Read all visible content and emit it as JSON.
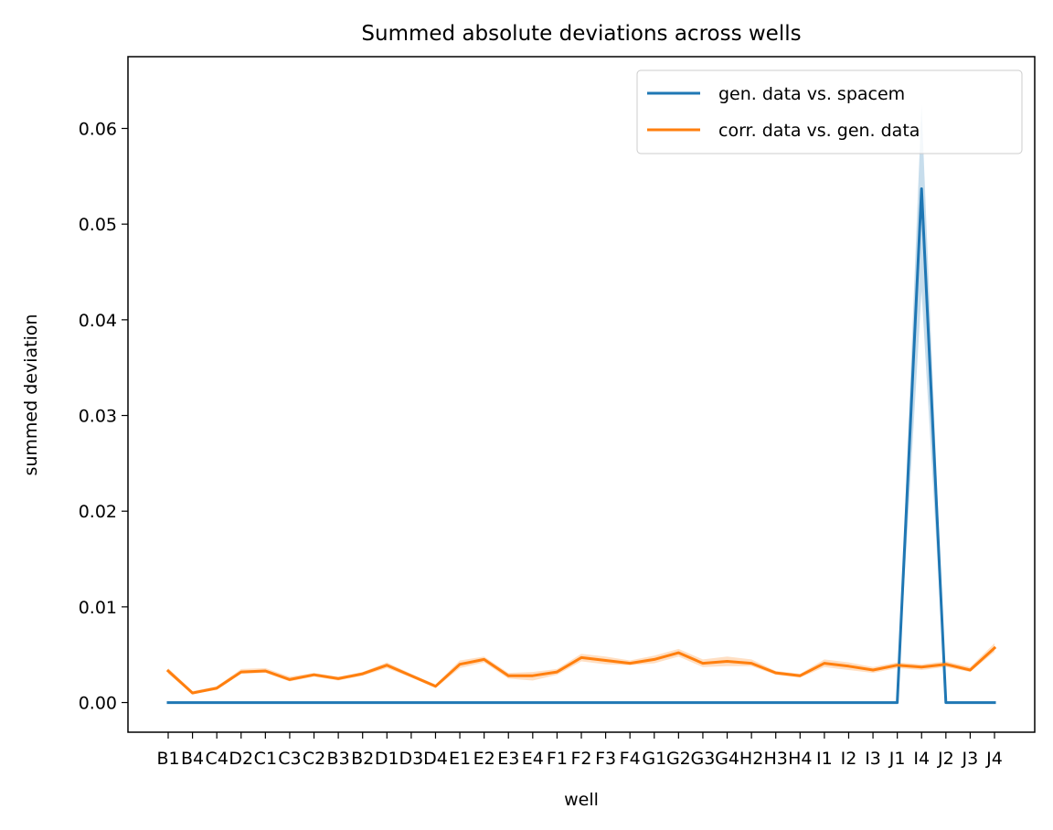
{
  "chart_data": {
    "type": "line",
    "title": "Summed absolute deviations across wells",
    "xlabel": "well",
    "ylabel": "summed deviation",
    "categories": [
      "B1",
      "B4",
      "C4",
      "D2",
      "C1",
      "C3",
      "C2",
      "B3",
      "B2",
      "D1",
      "D3",
      "D4",
      "E1",
      "E2",
      "E3",
      "E4",
      "F1",
      "F2",
      "F3",
      "F4",
      "G1",
      "G2",
      "G3",
      "G4",
      "H2",
      "H3",
      "H4",
      "I1",
      "I2",
      "I3",
      "J1",
      "I4",
      "J2",
      "J3",
      "J4"
    ],
    "ylim": [
      -0.0031,
      0.0675
    ],
    "yticks": [
      0.0,
      0.01,
      0.02,
      0.03,
      0.04,
      0.05,
      0.06
    ],
    "ytick_labels": [
      "0.00",
      "0.01",
      "0.02",
      "0.03",
      "0.04",
      "0.05",
      "0.06"
    ],
    "grid": false,
    "legend_position": "top-right",
    "series": [
      {
        "name": "gen. data vs. spacem",
        "color": "#1f77b4",
        "values": [
          0,
          0,
          0,
          0,
          0,
          0,
          0,
          0,
          0,
          0,
          0,
          0,
          0,
          0,
          0,
          0,
          0,
          0,
          0,
          0,
          0,
          0,
          0,
          0,
          0,
          0,
          0,
          0,
          0,
          0,
          0,
          0.0537,
          0,
          0,
          0
        ],
        "band_low": [
          0,
          0,
          0,
          0,
          0,
          0,
          0,
          0,
          0,
          0,
          0,
          0,
          0,
          0,
          0,
          0,
          0,
          0,
          0,
          0,
          0,
          0,
          0,
          0,
          0,
          0,
          0,
          0,
          0,
          0,
          0,
          0.043,
          0,
          0,
          0
        ],
        "band_high": [
          0,
          0,
          0,
          0,
          0,
          0,
          0,
          0,
          0,
          0,
          0,
          0,
          0,
          0,
          0,
          0,
          0,
          0,
          0,
          0,
          0,
          0,
          0,
          0,
          0,
          0,
          0,
          0,
          0,
          0,
          0,
          0.0625,
          0,
          0,
          0
        ]
      },
      {
        "name": "corr. data vs. gen. data",
        "color": "#ff7f0e",
        "values": [
          0.0033,
          0.001,
          0.0015,
          0.0032,
          0.0033,
          0.0024,
          0.0029,
          0.0025,
          0.003,
          0.0039,
          0.0028,
          0.0017,
          0.004,
          0.0045,
          0.0028,
          0.0028,
          0.0032,
          0.0047,
          0.0044,
          0.0041,
          0.0045,
          0.0052,
          0.0041,
          0.0043,
          0.0041,
          0.0031,
          0.0028,
          0.0041,
          0.0038,
          0.0034,
          0.0039,
          0.0037,
          0.004,
          0.0034,
          0.0057
        ],
        "band_low": [
          0.003,
          0.0009,
          0.0013,
          0.003,
          0.0031,
          0.0022,
          0.0027,
          0.0023,
          0.0028,
          0.0036,
          0.0026,
          0.0015,
          0.0036,
          0.0042,
          0.0025,
          0.0023,
          0.0029,
          0.0043,
          0.004,
          0.0039,
          0.0041,
          0.0048,
          0.0037,
          0.0038,
          0.0038,
          0.0029,
          0.0026,
          0.0037,
          0.0034,
          0.0031,
          0.0036,
          0.0034,
          0.0037,
          0.0032,
          0.0053
        ],
        "band_high": [
          0.0036,
          0.0012,
          0.0017,
          0.0035,
          0.0036,
          0.0027,
          0.0031,
          0.0027,
          0.0032,
          0.0042,
          0.003,
          0.0019,
          0.0044,
          0.0048,
          0.0031,
          0.0032,
          0.0035,
          0.0051,
          0.0048,
          0.0044,
          0.0049,
          0.0056,
          0.0045,
          0.0048,
          0.0045,
          0.0033,
          0.003,
          0.0045,
          0.0042,
          0.0037,
          0.0042,
          0.004,
          0.0043,
          0.0037,
          0.0062
        ]
      }
    ]
  }
}
